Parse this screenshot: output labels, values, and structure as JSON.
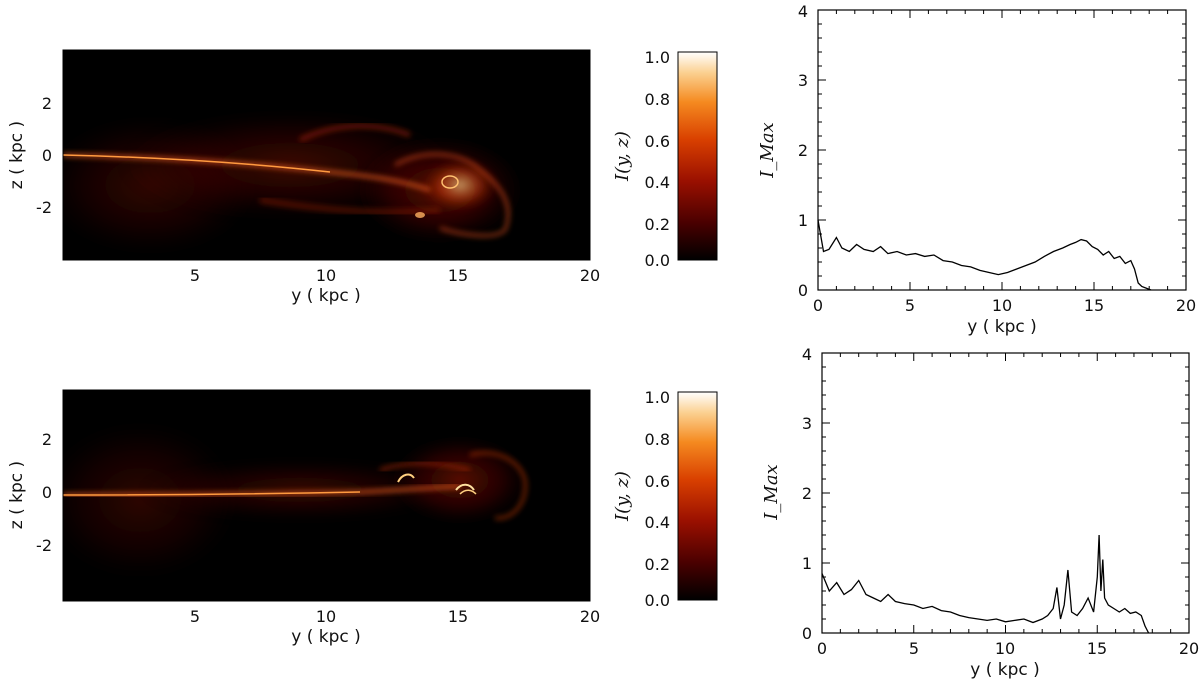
{
  "chart_data": [
    {
      "type": "heatmap",
      "panel": "top-left",
      "xlabel": "y ( kpc )",
      "ylabel": "z ( kpc )",
      "x_ticks": [
        "5",
        "10",
        "15",
        "20"
      ],
      "y_ticks": [
        "2",
        "0",
        "-2"
      ],
      "xlim": [
        0,
        20
      ],
      "ylim": [
        -4,
        4
      ],
      "colorbar": {
        "label": "I(y, z)",
        "ticks": [
          "1.0",
          "0.8",
          "0.6",
          "0.4",
          "0.2",
          "0.0"
        ],
        "range": [
          0.0,
          1.0
        ],
        "colormap": [
          "#000000",
          "#4a0000",
          "#9a1000",
          "#d94000",
          "#f58a20",
          "#fbd090",
          "#ffffff"
        ]
      },
      "colors": {
        "background": "#000000",
        "jet": "#d83a12"
      }
    },
    {
      "type": "line",
      "panel": "top-right",
      "xlabel": "y ( kpc )",
      "ylabel": "I_Max",
      "x_ticks": [
        "0",
        "5",
        "10",
        "15",
        "20"
      ],
      "y_ticks": [
        "0",
        "1",
        "2",
        "3",
        "4"
      ],
      "xlim": [
        0,
        20
      ],
      "ylim": [
        0,
        4
      ],
      "series": [
        {
          "x": [
            0,
            0.3,
            0.6,
            1.0,
            1.3,
            1.7,
            2.1,
            2.5,
            3.0,
            3.4,
            3.8,
            4.3,
            4.8,
            5.3,
            5.8,
            6.3,
            6.8,
            7.3,
            7.8,
            8.3,
            8.8,
            9.3,
            9.8,
            10.3,
            10.8,
            11.3,
            11.8,
            12.3,
            12.8,
            13.3,
            13.7,
            14.0,
            14.3,
            14.6,
            14.9,
            15.2,
            15.5,
            15.8,
            16.1,
            16.4,
            16.7,
            17.0,
            17.2,
            17.4,
            17.6,
            17.9,
            18.1
          ],
          "y": [
            1.0,
            0.55,
            0.58,
            0.75,
            0.6,
            0.55,
            0.65,
            0.58,
            0.55,
            0.62,
            0.52,
            0.55,
            0.5,
            0.52,
            0.48,
            0.5,
            0.42,
            0.4,
            0.35,
            0.33,
            0.28,
            0.25,
            0.22,
            0.25,
            0.3,
            0.35,
            0.4,
            0.48,
            0.55,
            0.6,
            0.65,
            0.68,
            0.72,
            0.7,
            0.62,
            0.58,
            0.5,
            0.55,
            0.45,
            0.48,
            0.38,
            0.42,
            0.3,
            0.1,
            0.05,
            0.02,
            0.0
          ]
        }
      ]
    },
    {
      "type": "heatmap",
      "panel": "bottom-left",
      "xlabel": "y ( kpc )",
      "ylabel": "z ( kpc )",
      "x_ticks": [
        "5",
        "10",
        "15",
        "20"
      ],
      "y_ticks": [
        "2",
        "0",
        "-2"
      ],
      "xlim": [
        0,
        20
      ],
      "ylim": [
        -4,
        4
      ],
      "colorbar": {
        "label": "I(y, z)",
        "ticks": [
          "1.0",
          "0.8",
          "0.6",
          "0.4",
          "0.2",
          "0.0"
        ],
        "range": [
          0.0,
          1.0
        ],
        "colormap": [
          "#000000",
          "#4a0000",
          "#9a1000",
          "#d94000",
          "#f58a20",
          "#fbd090",
          "#ffffff"
        ]
      },
      "colors": {
        "background": "#000000",
        "jet": "#d83a12"
      }
    },
    {
      "type": "line",
      "panel": "bottom-right",
      "xlabel": "y ( kpc )",
      "ylabel": "I_Max",
      "x_ticks": [
        "0",
        "5",
        "10",
        "15",
        "20"
      ],
      "y_ticks": [
        "0",
        "1",
        "2",
        "3",
        "4"
      ],
      "xlim": [
        0,
        20
      ],
      "ylim": [
        0,
        4
      ],
      "series": [
        {
          "x": [
            0,
            0.4,
            0.8,
            1.2,
            1.6,
            2.0,
            2.4,
            2.8,
            3.2,
            3.6,
            4.0,
            4.5,
            5.0,
            5.5,
            6.0,
            6.5,
            7.0,
            7.5,
            8.0,
            8.5,
            9.0,
            9.5,
            10.0,
            10.5,
            11.0,
            11.5,
            12.0,
            12.3,
            12.6,
            12.8,
            13.0,
            13.2,
            13.4,
            13.6,
            13.9,
            14.2,
            14.5,
            14.8,
            15.0,
            15.1,
            15.2,
            15.3,
            15.4,
            15.6,
            15.9,
            16.2,
            16.5,
            16.8,
            17.1,
            17.4,
            17.6,
            17.8
          ],
          "y": [
            0.85,
            0.6,
            0.72,
            0.55,
            0.62,
            0.75,
            0.55,
            0.5,
            0.45,
            0.55,
            0.45,
            0.42,
            0.4,
            0.35,
            0.38,
            0.32,
            0.3,
            0.25,
            0.22,
            0.2,
            0.18,
            0.2,
            0.16,
            0.18,
            0.2,
            0.15,
            0.2,
            0.25,
            0.35,
            0.65,
            0.2,
            0.4,
            0.9,
            0.3,
            0.25,
            0.35,
            0.5,
            0.3,
            0.8,
            1.4,
            0.6,
            1.05,
            0.5,
            0.4,
            0.35,
            0.3,
            0.35,
            0.28,
            0.3,
            0.25,
            0.1,
            0.0
          ]
        }
      ]
    }
  ]
}
